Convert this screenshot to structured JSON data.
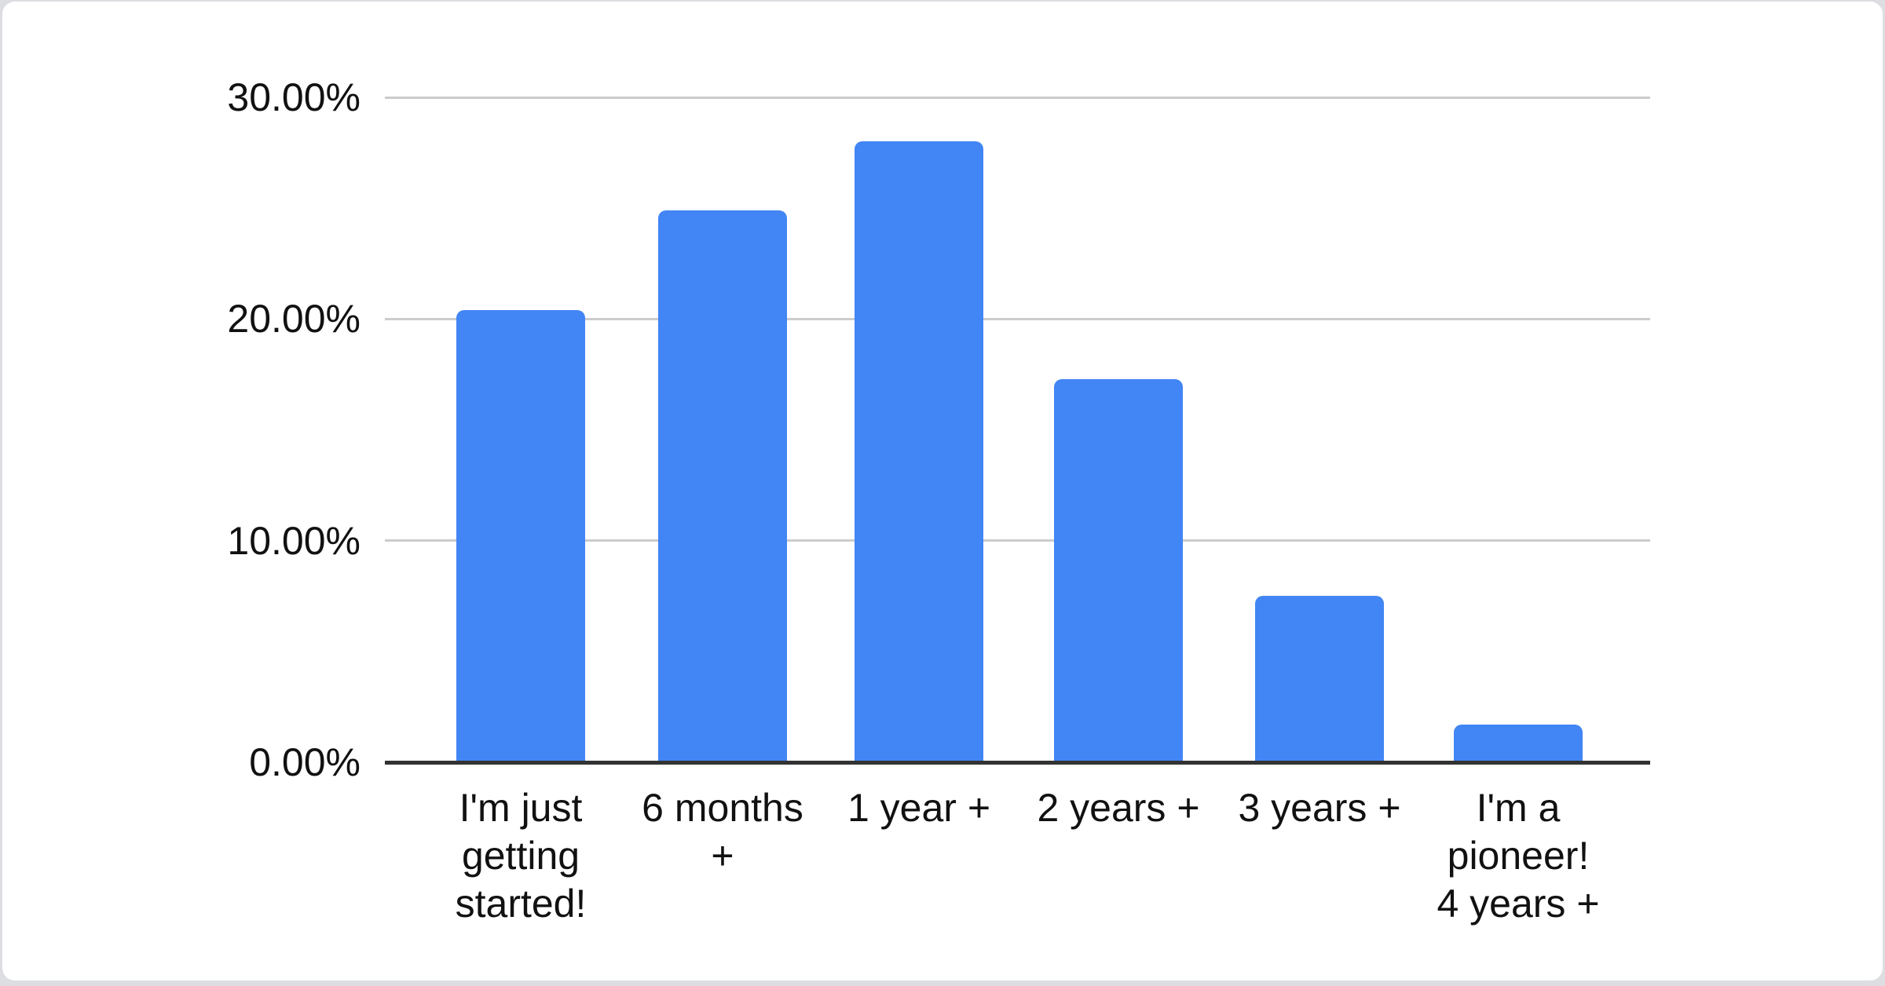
{
  "page": {
    "background_color": "#dcdee2",
    "card_background_color": "#ffffff"
  },
  "chart_data": {
    "type": "bar",
    "title": "",
    "categories": [
      "I'm just getting started!",
      "6 months +",
      "1 year +",
      "2 years +",
      "3 years +",
      "I'm a pioneer! 4 years +"
    ],
    "category_label_lines": [
      [
        "I'm just",
        "getting",
        "started!"
      ],
      [
        "6 months",
        "+"
      ],
      [
        "1 year +"
      ],
      [
        "2 years +"
      ],
      [
        "3 years +"
      ],
      [
        "I'm a",
        "pioneer!",
        "4 years +"
      ]
    ],
    "values": [
      20.4,
      24.9,
      28.0,
      17.3,
      7.5,
      1.7
    ],
    "unit": "%",
    "xlabel": "",
    "ylabel": "",
    "ylim": [
      0,
      30
    ],
    "y_ticks": [
      {
        "label": "30.00%",
        "value": 30
      },
      {
        "label": "20.00%",
        "value": 20
      },
      {
        "label": "10.00%",
        "value": 10
      },
      {
        "label": "0.00%",
        "value": 0
      }
    ],
    "grid": true,
    "legend": "none",
    "bar_color": "#4285f4",
    "gridline_color": "#cccccc",
    "axis_color": "#333333",
    "label_color": "#111111"
  }
}
